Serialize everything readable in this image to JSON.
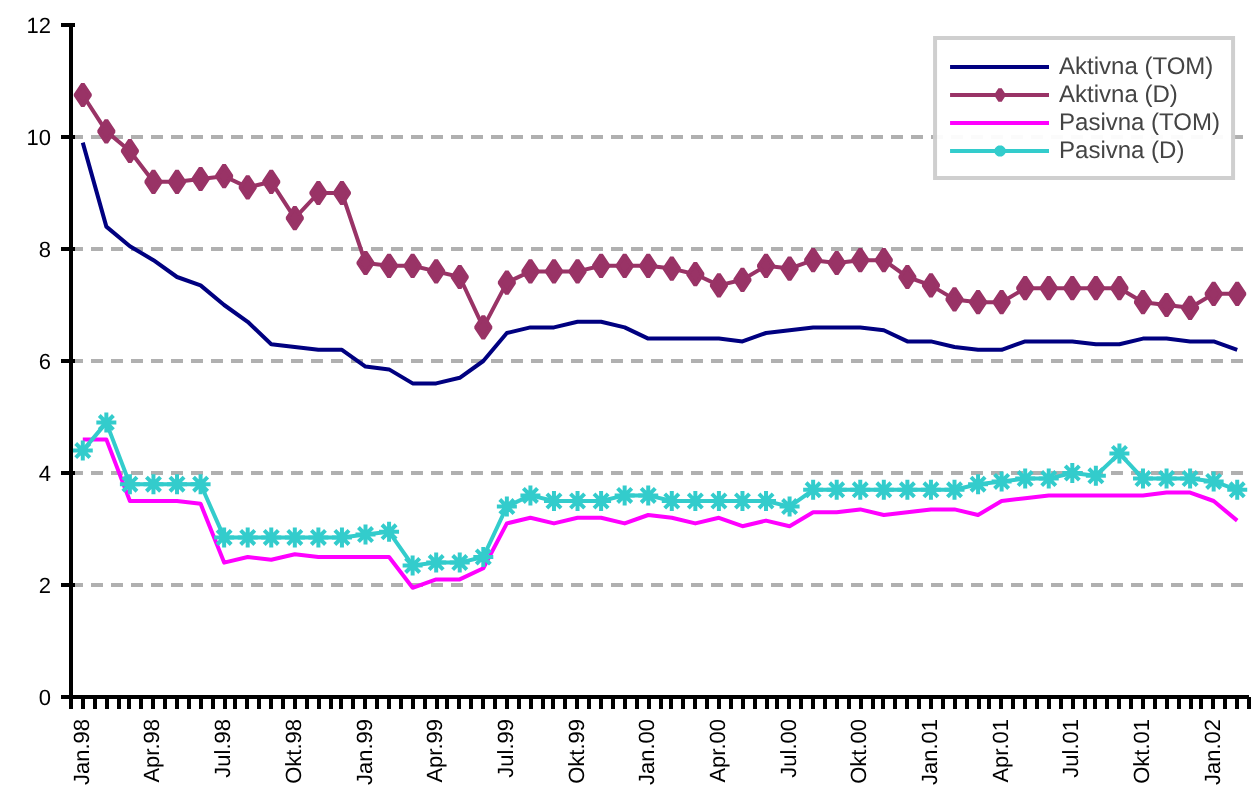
{
  "chart_data": {
    "type": "line",
    "categories": [
      "Jan.98",
      null,
      null,
      "Apr.98",
      null,
      null,
      "Jul.98",
      null,
      null,
      "Okt.98",
      null,
      null,
      "Jan.99",
      null,
      null,
      "Apr.99",
      null,
      null,
      "Jul.99",
      null,
      null,
      "Okt.99",
      null,
      null,
      "Jan.00",
      null,
      null,
      "Apr.00",
      null,
      null,
      "Jul.00",
      null,
      null,
      "Okt.00",
      null,
      null,
      "Jan.01",
      null,
      null,
      "Apr.01",
      null,
      null,
      "Jul.01",
      null,
      null,
      "Okt.01",
      null,
      null,
      "Jan.02",
      null
    ],
    "series": [
      {
        "name": "Aktivna (TOM)",
        "color": "#000080",
        "marker": "none",
        "values": [
          9.9,
          8.4,
          8.05,
          7.8,
          7.5,
          7.35,
          7.0,
          6.7,
          6.3,
          6.25,
          6.2,
          6.2,
          5.9,
          5.85,
          5.6,
          5.6,
          5.7,
          6.0,
          6.5,
          6.6,
          6.6,
          6.7,
          6.7,
          6.6,
          6.4,
          6.4,
          6.4,
          6.4,
          6.35,
          6.5,
          6.55,
          6.6,
          6.6,
          6.6,
          6.55,
          6.35,
          6.35,
          6.25,
          6.2,
          6.2,
          6.35,
          6.35,
          6.35,
          6.3,
          6.3,
          6.4,
          6.4,
          6.35,
          6.35,
          6.2
        ]
      },
      {
        "name": "Aktivna (D)",
        "color": "#993366",
        "marker": "diamond",
        "values": [
          10.75,
          10.1,
          9.75,
          9.2,
          9.2,
          9.25,
          9.3,
          9.1,
          9.2,
          8.55,
          9.0,
          9.0,
          7.75,
          7.7,
          7.7,
          7.6,
          7.5,
          6.6,
          7.4,
          7.6,
          7.6,
          7.6,
          7.7,
          7.7,
          7.7,
          7.65,
          7.55,
          7.35,
          7.45,
          7.7,
          7.65,
          7.8,
          7.75,
          7.8,
          7.8,
          7.5,
          7.35,
          7.1,
          7.05,
          7.05,
          7.3,
          7.3,
          7.3,
          7.3,
          7.3,
          7.05,
          7.0,
          6.95,
          7.2,
          7.2
        ]
      },
      {
        "name": "Pasivna (TOM)",
        "color": "#ff00ff",
        "marker": "none",
        "values": [
          4.6,
          4.6,
          3.5,
          3.5,
          3.5,
          3.45,
          2.4,
          2.5,
          2.45,
          2.55,
          2.5,
          2.5,
          2.5,
          2.5,
          1.95,
          2.1,
          2.1,
          2.3,
          3.1,
          3.2,
          3.1,
          3.2,
          3.2,
          3.1,
          3.25,
          3.2,
          3.1,
          3.2,
          3.05,
          3.15,
          3.05,
          3.3,
          3.3,
          3.35,
          3.25,
          3.3,
          3.35,
          3.35,
          3.25,
          3.5,
          3.55,
          3.6,
          3.6,
          3.6,
          3.6,
          3.6,
          3.65,
          3.65,
          3.5,
          3.15
        ]
      },
      {
        "name": "Pasivna (D)",
        "color": "#33cccc",
        "marker": "cross",
        "values": [
          4.4,
          4.9,
          3.8,
          3.8,
          3.8,
          3.8,
          2.85,
          2.85,
          2.85,
          2.85,
          2.85,
          2.85,
          2.9,
          2.95,
          2.35,
          2.4,
          2.4,
          2.5,
          3.4,
          3.6,
          3.5,
          3.5,
          3.5,
          3.6,
          3.6,
          3.5,
          3.5,
          3.5,
          3.5,
          3.5,
          3.4,
          3.7,
          3.7,
          3.7,
          3.7,
          3.7,
          3.7,
          3.7,
          3.8,
          3.85,
          3.9,
          3.9,
          4.0,
          3.95,
          4.35,
          3.9,
          3.9,
          3.9,
          3.85,
          3.7
        ]
      }
    ],
    "ylim": [
      0,
      12
    ],
    "yticks": [
      0,
      2,
      4,
      6,
      8,
      10,
      12
    ],
    "grid": "y",
    "legend": "top right",
    "line_style": "solid"
  }
}
